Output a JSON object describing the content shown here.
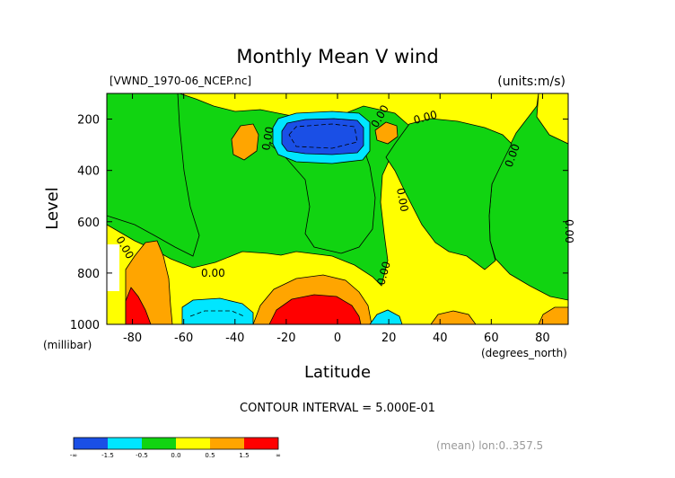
{
  "chart_data": {
    "type": "heatmap",
    "title": "Monthly Mean V wind",
    "file_label": "[VWND_1970-06_NCEP.nc]",
    "units_label": "(units:m/s)",
    "xlabel": "Latitude",
    "x_units": "(degrees_north)",
    "ylabel": "Level",
    "y_units": "(millibar)",
    "xlim": [
      -90,
      90
    ],
    "ylim": [
      1000,
      100
    ],
    "x_ticks": [
      -80,
      -60,
      -40,
      -20,
      0,
      20,
      40,
      60,
      80
    ],
    "y_ticks": [
      200,
      400,
      600,
      800,
      1000
    ],
    "contour_interval_text": "CONTOUR INTERVAL = 5.000E-01",
    "footer_note": "(mean) lon:0..357.5",
    "contour_labels": [
      "0.00",
      "0.00",
      "0.00",
      "0.00",
      "0.00",
      "0.00",
      "0.00",
      "0.00",
      "0.00"
    ],
    "color_scale": {
      "levels": [
        "-∞",
        "-1.5",
        "-0.5",
        "0.0",
        "0.5",
        "1.5",
        "∞"
      ],
      "colors": [
        "#1a4fe6",
        "#00e6ff",
        "#11d411",
        "#ffff00",
        "#ffa500",
        "#ff0000"
      ]
    }
  }
}
